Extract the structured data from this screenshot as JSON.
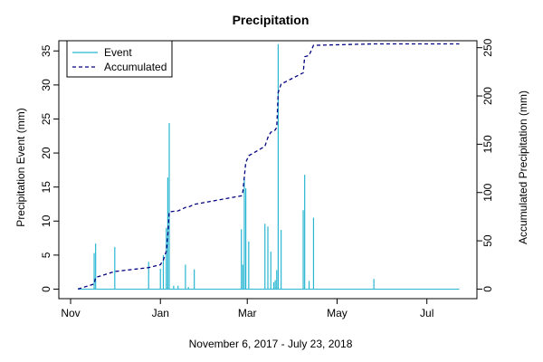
{
  "chart_data": {
    "type": "line",
    "title": "Precipitation",
    "xlabel": "November 6, 2017 - July 23, 2018",
    "ylabel_left": "Precipitation Event (mm)",
    "ylabel_right": "Accumulated Precipitation (mm)",
    "xlim": [
      "2017-10-24",
      "2018-08-04"
    ],
    "ylim_left": [
      -1.4,
      36.5
    ],
    "ylim_right": [
      -9.9,
      257.2
    ],
    "x_ticks": [
      {
        "date": "2017-11-01",
        "label": "Nov"
      },
      {
        "date": "2018-01-01",
        "label": "Jan"
      },
      {
        "date": "2018-03-01",
        "label": "Mar"
      },
      {
        "date": "2018-05-01",
        "label": "May"
      },
      {
        "date": "2018-07-01",
        "label": "Jul"
      }
    ],
    "y_ticks_left": [
      0,
      5,
      10,
      15,
      20,
      25,
      30,
      35
    ],
    "y_ticks_right": [
      0,
      50,
      100,
      150,
      200,
      250
    ],
    "legend_position": "top-left",
    "series": [
      {
        "name": "Event",
        "style": "solid",
        "color": "#29b6d2",
        "axis": "left",
        "type": "bar-spikes",
        "points": [
          [
            "2017-11-18",
            6.7
          ],
          [
            "2017-11-17",
            5.3
          ],
          [
            "2017-12-01",
            6.2
          ],
          [
            "2017-12-24",
            4.0
          ],
          [
            "2018-01-01",
            3.0
          ],
          [
            "2018-01-03",
            5.0
          ],
          [
            "2018-01-05",
            9.0
          ],
          [
            "2018-01-06",
            16.4
          ],
          [
            "2018-01-07",
            24.4
          ],
          [
            "2018-01-10",
            0.5
          ],
          [
            "2018-01-13",
            0.5
          ],
          [
            "2018-01-18",
            3.6
          ],
          [
            "2018-01-20",
            0.3
          ],
          [
            "2018-01-24",
            2.9
          ],
          [
            "2018-02-25",
            8.8
          ],
          [
            "2018-02-26",
            3.6
          ],
          [
            "2018-02-27",
            16.2
          ],
          [
            "2018-02-28",
            14.8
          ],
          [
            "2018-03-02",
            7.0
          ],
          [
            "2018-03-13",
            9.6
          ],
          [
            "2018-03-15",
            9.2
          ],
          [
            "2018-03-17",
            5.5
          ],
          [
            "2018-03-19",
            1.0
          ],
          [
            "2018-03-20",
            1.3
          ],
          [
            "2018-03-21",
            2.8
          ],
          [
            "2018-03-22",
            36.0
          ],
          [
            "2018-03-24",
            8.7
          ],
          [
            "2018-04-08",
            11.6
          ],
          [
            "2018-04-09",
            16.8
          ],
          [
            "2018-04-12",
            1.2
          ],
          [
            "2018-04-15",
            10.5
          ],
          [
            "2018-05-26",
            1.5
          ]
        ]
      },
      {
        "name": "Accumulated",
        "style": "dashed",
        "color": "#000080",
        "axis": "right",
        "type": "step-line",
        "points": [
          [
            "2017-11-06",
            0
          ],
          [
            "2017-11-17",
            5.3
          ],
          [
            "2017-11-18",
            12
          ],
          [
            "2017-12-01",
            18.2
          ],
          [
            "2017-12-24",
            22.2
          ],
          [
            "2018-01-01",
            25.2
          ],
          [
            "2018-01-03",
            30.2
          ],
          [
            "2018-01-05",
            39.2
          ],
          [
            "2018-01-06",
            55.6
          ],
          [
            "2018-01-07",
            80
          ],
          [
            "2018-01-10",
            80.5
          ],
          [
            "2018-01-13",
            81
          ],
          [
            "2018-01-18",
            84.6
          ],
          [
            "2018-01-20",
            84.9
          ],
          [
            "2018-01-24",
            87.8
          ],
          [
            "2018-02-25",
            96.6
          ],
          [
            "2018-02-26",
            100.2
          ],
          [
            "2018-02-27",
            116.4
          ],
          [
            "2018-02-28",
            131.2
          ],
          [
            "2018-03-02",
            138.2
          ],
          [
            "2018-03-13",
            147.8
          ],
          [
            "2018-03-15",
            157
          ],
          [
            "2018-03-17",
            162.5
          ],
          [
            "2018-03-19",
            163.5
          ],
          [
            "2018-03-20",
            164.8
          ],
          [
            "2018-03-21",
            167.6
          ],
          [
            "2018-03-22",
            203.6
          ],
          [
            "2018-03-24",
            212.3
          ],
          [
            "2018-04-08",
            223.9
          ],
          [
            "2018-04-09",
            240.7
          ],
          [
            "2018-04-12",
            241.9
          ],
          [
            "2018-04-15",
            252.4
          ],
          [
            "2018-05-26",
            253.9
          ],
          [
            "2018-07-23",
            253.9
          ]
        ]
      }
    ]
  }
}
